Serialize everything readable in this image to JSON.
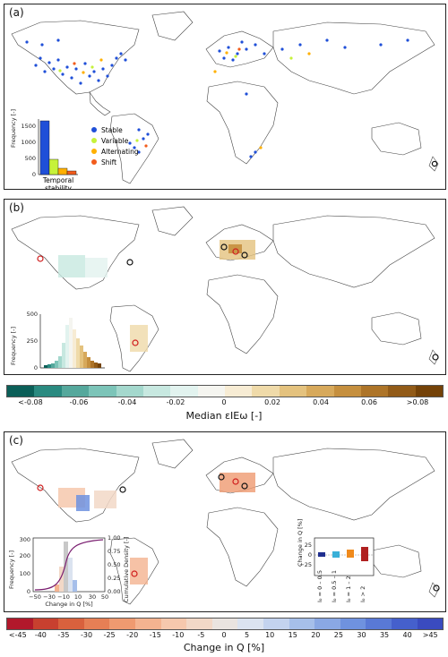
{
  "panels": {
    "a": {
      "label": "(a)",
      "legend": [
        "Stable",
        "Variable",
        "Alternating",
        "Shift"
      ],
      "colors": {
        "Stable": "#1f4fd8",
        "Variable": "#c6f23a",
        "Alternating": "#ffb000",
        "Shift": "#f25c1c"
      },
      "inset": {
        "ylabel": "Frequency [-]",
        "xlabel_1": "Temporal",
        "xlabel_2": "stability",
        "yticks": [
          "0",
          "500",
          "1000",
          "1500"
        ],
        "values": [
          1650,
          450,
          200,
          110
        ]
      }
    },
    "b": {
      "label": "(b)",
      "inset": {
        "ylabel": "Frequency [-]",
        "yticks": [
          "0",
          "250",
          "500"
        ]
      },
      "colorbar": {
        "title": "Median εIEω [-]",
        "ticks": [
          "<-0.08",
          "-0.06",
          "-0.04",
          "-0.02",
          "0",
          "0.02",
          "0.04",
          "0.06",
          ">0.08"
        ]
      }
    },
    "c": {
      "label": "(c)",
      "hist": {
        "ylabel": "Frequency [-]",
        "ylabel2": "Cumulative Density [-]",
        "xlabel": "Change in Q [%]",
        "xticks": [
          "−50",
          "−30",
          "−10",
          "10",
          "30",
          "50"
        ],
        "yticks": [
          "0",
          "100",
          "200",
          "300"
        ],
        "y2ticks": [
          "0.00",
          "0.25",
          "0.50",
          "0.75",
          "1.00"
        ]
      },
      "box": {
        "ylabel": "Change in Q [%]",
        "yticks": [
          "25",
          "0",
          "−25"
        ],
        "categories": [
          "I₀ = 0 – 0.5",
          "I₀ = 0.5 – 1",
          "I₀ = 1 – 2",
          "I₀ > 2"
        ],
        "colors": [
          "#1f2f8f",
          "#3ab0d8",
          "#f08a1c",
          "#b02020"
        ]
      },
      "colorbar": {
        "title": "Change in Q [%]",
        "ticks": [
          "<-45",
          "-40",
          "-35",
          "-30",
          "-25",
          "-20",
          "-15",
          "-10",
          "-5",
          "0",
          "5",
          "10",
          "15",
          "20",
          "25",
          "30",
          "35",
          "40",
          ">45"
        ]
      }
    }
  },
  "colorbars": {
    "b_colors": [
      "#0b5f58",
      "#2a8a80",
      "#55a89c",
      "#7cc4b8",
      "#a4d8cd",
      "#c7e8e0",
      "#e2f3ef",
      "#f5f5f0",
      "#f7ecd4",
      "#efdaa9",
      "#e4c27e",
      "#d7a95b",
      "#c58f3e",
      "#ad7428",
      "#925b18",
      "#744208"
    ],
    "c_colors": [
      "#b2182b",
      "#c8402f",
      "#d9613d",
      "#e67f55",
      "#ef9a70",
      "#f4b390",
      "#f6c8ad",
      "#f2d8c7",
      "#eae4e0",
      "#dbe3f0",
      "#c3d3ef",
      "#a6bfea",
      "#8aa8e4",
      "#6f92df",
      "#5979d6",
      "#4560cc",
      "#3a4bbf"
    ]
  }
}
